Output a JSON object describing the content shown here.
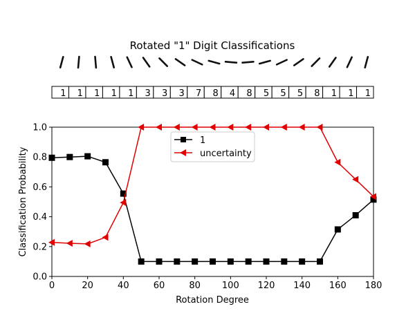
{
  "chart_data": {
    "type": "line",
    "title": "Rotated \"1\" Digit Classifications",
    "xlabel": "Rotation Degree",
    "ylabel": "Classification Probability",
    "xlim": [
      0,
      180
    ],
    "ylim": [
      0,
      1.0
    ],
    "x_ticks": [
      "0",
      "20",
      "40",
      "60",
      "80",
      "100",
      "120",
      "140",
      "160",
      "180"
    ],
    "y_ticks": [
      "0.0",
      "0.2",
      "0.4",
      "0.6",
      "0.8",
      "1.0"
    ],
    "grid": false,
    "legend_position": "upper-center",
    "x": [
      0,
      10,
      20,
      30,
      40,
      50,
      60,
      70,
      80,
      90,
      100,
      110,
      120,
      130,
      140,
      150,
      160,
      170,
      180
    ],
    "predicted_labels": [
      "1",
      "1",
      "1",
      "1",
      "1",
      "3",
      "3",
      "3",
      "7",
      "8",
      "4",
      "8",
      "5",
      "5",
      "5",
      "8",
      "1",
      "1",
      "1"
    ],
    "series": [
      {
        "name": "1",
        "color": "#000000",
        "marker": "square",
        "values": [
          0.795,
          0.8,
          0.805,
          0.765,
          0.555,
          0.1,
          0.1,
          0.1,
          0.1,
          0.1,
          0.1,
          0.1,
          0.1,
          0.1,
          0.1,
          0.1,
          0.315,
          0.41,
          0.515
        ]
      },
      {
        "name": "uncertainty",
        "color": "#e00000",
        "marker": "triangle-left",
        "values": [
          0.228,
          0.222,
          0.218,
          0.262,
          0.495,
          1.0,
          1.0,
          1.0,
          1.0,
          1.0,
          1.0,
          1.0,
          1.0,
          1.0,
          1.0,
          1.0,
          0.765,
          0.65,
          0.535
        ]
      }
    ]
  }
}
